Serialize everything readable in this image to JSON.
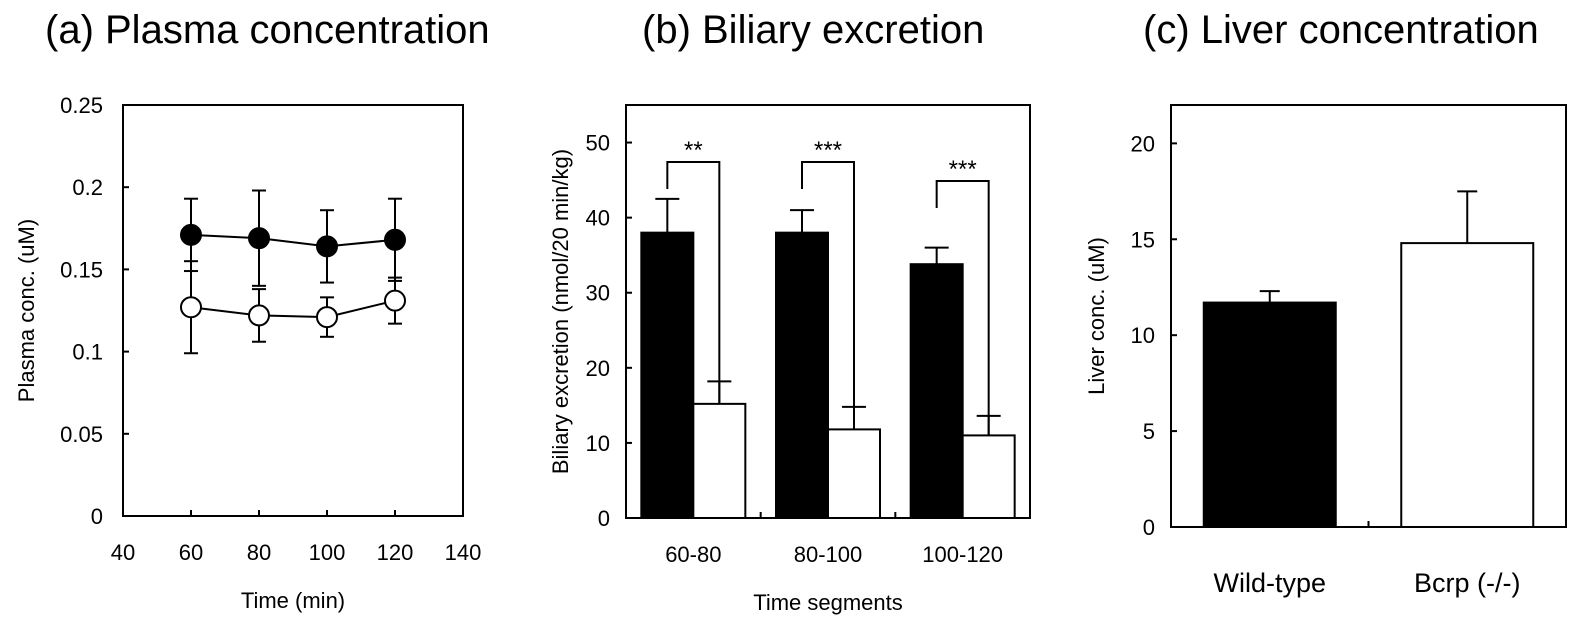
{
  "chart_data": [
    {
      "type": "line",
      "title": "(a) Plasma concentration",
      "xlabel": "Time (min)",
      "ylabel": "Plasma conc. (uM)",
      "xlim": [
        40,
        140
      ],
      "ylim": [
        0,
        0.25
      ],
      "x_ticks": [
        "40",
        "60",
        "80",
        "100",
        "120",
        "140"
      ],
      "y_ticks": [
        "0",
        "0.05",
        "0.1",
        "0.15",
        "0.2",
        "0.25"
      ],
      "x": [
        60,
        80,
        100,
        120
      ],
      "series": [
        {
          "marker": "filled-circle",
          "color": "#000000",
          "values": [
            0.171,
            0.169,
            0.164,
            0.168
          ],
          "errors": [
            0.022,
            0.029,
            0.022,
            0.025
          ]
        },
        {
          "marker": "open-circle",
          "color": "#ffffff",
          "values": [
            0.127,
            0.122,
            0.121,
            0.131
          ],
          "errors": [
            0.028,
            0.016,
            0.012,
            0.014
          ]
        }
      ]
    },
    {
      "type": "bar",
      "title": "(b) Biliary excretion",
      "xlabel": "Time segments",
      "ylabel": "Biliary excretion (nmol/20 min/kg)",
      "ylim": [
        0,
        55
      ],
      "y_ticks": [
        "0",
        "10",
        "20",
        "30",
        "40",
        "50"
      ],
      "categories": [
        "60-80",
        "80-100",
        "100-120"
      ],
      "series": [
        {
          "fill": "#000000",
          "values": [
            38.0,
            38.0,
            33.8
          ],
          "errors": [
            4.5,
            3.0,
            2.2
          ]
        },
        {
          "fill": "#ffffff",
          "values": [
            15.2,
            11.8,
            11.0
          ],
          "errors": [
            3.0,
            3.0,
            2.6
          ]
        }
      ],
      "annotations": [
        "**",
        "***",
        "***"
      ]
    },
    {
      "type": "bar",
      "title": "(c) Liver concentration",
      "xlabel": "",
      "ylabel": "Liver conc. (uM)",
      "ylim": [
        0,
        22
      ],
      "y_ticks": [
        "0",
        "5",
        "10",
        "15",
        "20"
      ],
      "categories": [
        "Wild-type",
        "Bcrp (-/-)"
      ],
      "values": [
        11.7,
        14.8
      ],
      "errors": [
        0.6,
        2.7
      ],
      "fills": [
        "#000000",
        "#ffffff"
      ]
    }
  ]
}
